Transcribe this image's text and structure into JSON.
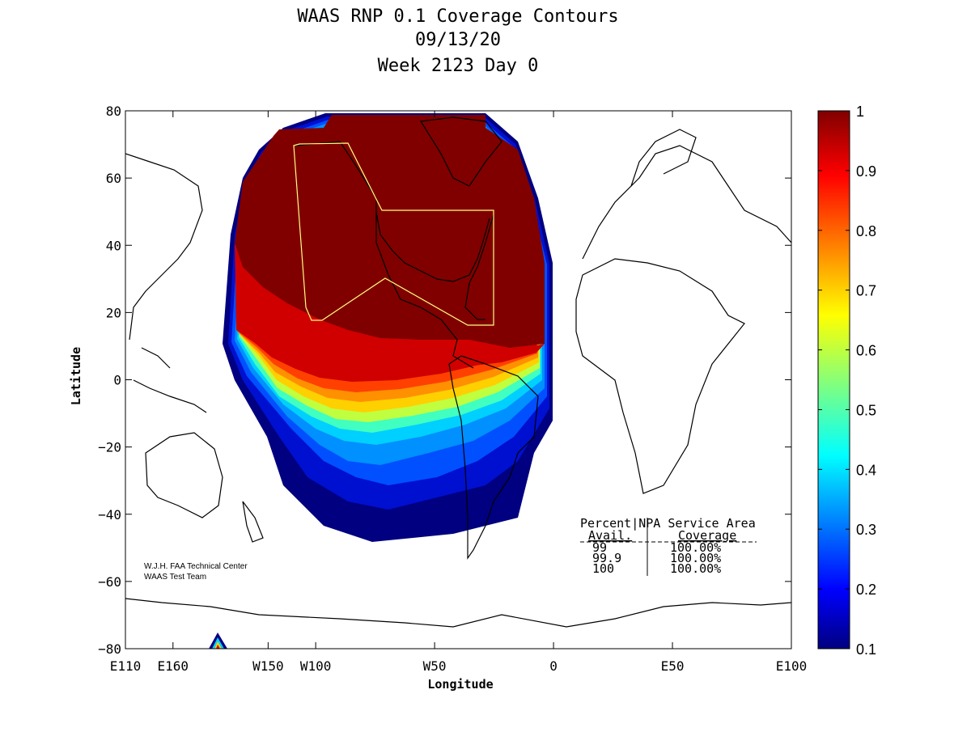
{
  "chart_data": {
    "type": "heatmap",
    "title": [
      "WAAS RNP 0.1 Coverage Contours",
      "09/13/20",
      "Week 2123 Day 0"
    ],
    "xlabel": "Longitude",
    "ylabel": "Latitude",
    "xlim": [
      -180,
      100
    ],
    "ylim": [
      -80,
      80
    ],
    "x_ticks": [
      {
        "value": -180,
        "label": "E110"
      },
      {
        "value": -160,
        "label": "E160"
      },
      {
        "value": -120,
        "label": "W150"
      },
      {
        "value": -100,
        "label": "W100"
      },
      {
        "value": -50,
        "label": "W50"
      },
      {
        "value": 0,
        "label": "0"
      },
      {
        "value": 50,
        "label": "E50"
      },
      {
        "value": 100,
        "label": "E100"
      }
    ],
    "y_ticks": [
      {
        "value": 80,
        "label": "80"
      },
      {
        "value": 60,
        "label": "60"
      },
      {
        "value": 40,
        "label": "40"
      },
      {
        "value": 20,
        "label": "20"
      },
      {
        "value": 0,
        "label": "0"
      },
      {
        "value": -20,
        "label": "−20"
      },
      {
        "value": -40,
        "label": "−40"
      },
      {
        "value": -60,
        "label": "−60"
      },
      {
        "value": -80,
        "label": "−80"
      }
    ],
    "colorbar": {
      "min": 0.1,
      "max": 1,
      "ticks": [
        "1",
        "0.9",
        "0.8",
        "0.7",
        "0.6",
        "0.5",
        "0.4",
        "0.3",
        "0.2",
        "0.1"
      ],
      "colormap": "jet"
    },
    "contour_levels": [
      {
        "value": 0.1,
        "color": "#000080"
      },
      {
        "value": 0.2,
        "color": "#0010d0"
      },
      {
        "value": 0.3,
        "color": "#0050ff"
      },
      {
        "value": 0.4,
        "color": "#0090ff"
      },
      {
        "value": 0.5,
        "color": "#00d0ff"
      },
      {
        "value": 0.6,
        "color": "#40ffc0"
      },
      {
        "value": 0.7,
        "color": "#c0ff40"
      },
      {
        "value": 0.8,
        "color": "#ffd000"
      },
      {
        "value": 0.85,
        "color": "#ff9000"
      },
      {
        "value": 0.9,
        "color": "#ff4000"
      },
      {
        "value": 0.95,
        "color": "#d00000"
      },
      {
        "value": 1.0,
        "color": "#800000"
      }
    ],
    "service_area_color": "#ffff80",
    "coverage_table": {
      "headers": [
        "Percent|NPA Service Area",
        "Avail.",
        "Coverage"
      ],
      "rows": [
        {
          "avail": "99",
          "coverage": "100.00%"
        },
        {
          "avail": "99.9",
          "coverage": "100.00%"
        },
        {
          "avail": "100",
          "coverage": "100.00%"
        }
      ]
    },
    "credits": [
      "W.J.H. FAA Technical Center",
      "WAAS Test Team"
    ]
  }
}
